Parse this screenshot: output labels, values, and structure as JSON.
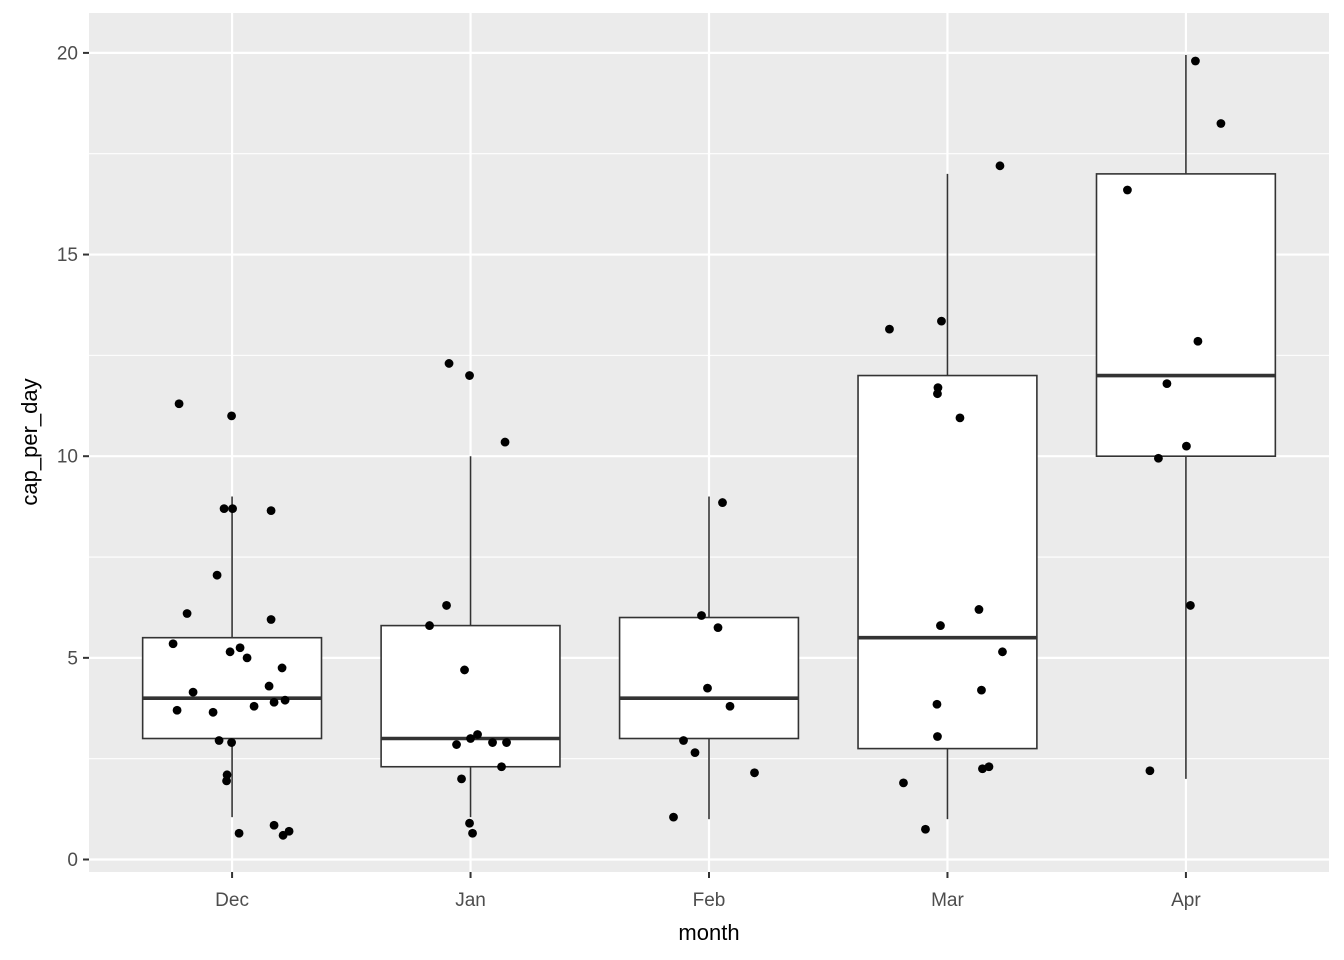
{
  "chart_data": {
    "type": "boxplot",
    "title": "",
    "xlabel": "month",
    "ylabel": "cap_per_day",
    "categories": [
      "Dec",
      "Jan",
      "Feb",
      "Mar",
      "Apr"
    ],
    "y_axis": {
      "ticks": [
        0,
        5,
        10,
        15,
        20
      ],
      "tick_labels": [
        "0",
        "5",
        "10",
        "15",
        "20"
      ],
      "minor_ticks": [
        2.5,
        7.5,
        12.5,
        17.5
      ],
      "range": [
        -0.31,
        21.0
      ]
    },
    "grid": "horizontal major+minor gridlines, vertical major gridline at each category center",
    "legend": "none",
    "boxes": [
      {
        "category": "Dec",
        "lower_whisker": 1.05,
        "q1": 3.0,
        "median": 4.0,
        "q3": 5.5,
        "upper_whisker": 9.0
      },
      {
        "category": "Jan",
        "lower_whisker": 1.05,
        "q1": 2.3,
        "median": 3.0,
        "q3": 5.8,
        "upper_whisker": 10.0
      },
      {
        "category": "Feb",
        "lower_whisker": 1.0,
        "q1": 3.0,
        "median": 4.0,
        "q3": 6.0,
        "upper_whisker": 9.0
      },
      {
        "category": "Mar",
        "lower_whisker": 1.0,
        "q1": 2.75,
        "median": 5.5,
        "q3": 12.0,
        "upper_whisker": 17.0
      },
      {
        "category": "Apr",
        "lower_whisker": 2.0,
        "q1": 10.0,
        "median": 12.0,
        "q3": 17.0,
        "upper_whisker": 19.95
      }
    ],
    "jitter_points_note": "each point = [cap_per_day value, horizontal jitter offset in px from category center]",
    "jitter_points": {
      "Dec": [
        [
          11.3,
          -53
        ],
        [
          11.0,
          -0.5
        ],
        [
          8.7,
          -8
        ],
        [
          8.7,
          0.5
        ],
        [
          8.65,
          39
        ],
        [
          7.05,
          -15
        ],
        [
          6.1,
          -45
        ],
        [
          5.95,
          39
        ],
        [
          5.35,
          -59
        ],
        [
          5.25,
          8
        ],
        [
          5.15,
          -2
        ],
        [
          5.0,
          15
        ],
        [
          4.75,
          50
        ],
        [
          4.3,
          37
        ],
        [
          4.15,
          -39
        ],
        [
          3.95,
          53
        ],
        [
          3.9,
          42
        ],
        [
          3.8,
          22
        ],
        [
          3.7,
          -55
        ],
        [
          3.65,
          -19
        ],
        [
          2.95,
          -13
        ],
        [
          2.9,
          -0.5
        ],
        [
          2.1,
          -5
        ],
        [
          1.95,
          -5.5
        ],
        [
          0.85,
          42
        ],
        [
          0.7,
          57
        ],
        [
          0.65,
          7
        ],
        [
          0.6,
          51
        ]
      ],
      "Jan": [
        [
          12.3,
          -21.5
        ],
        [
          12.0,
          -1
        ],
        [
          10.35,
          34.5
        ],
        [
          6.3,
          -24
        ],
        [
          5.8,
          -41
        ],
        [
          4.7,
          -6
        ],
        [
          3.1,
          7
        ],
        [
          3.0,
          0
        ],
        [
          2.85,
          -14
        ],
        [
          2.9,
          22
        ],
        [
          2.9,
          36
        ],
        [
          2.3,
          31
        ],
        [
          2.0,
          -9
        ],
        [
          0.9,
          -1
        ],
        [
          0.65,
          2
        ]
      ],
      "Feb": [
        [
          8.85,
          13.5
        ],
        [
          6.05,
          -7.5
        ],
        [
          5.75,
          9
        ],
        [
          4.25,
          -1.5
        ],
        [
          3.8,
          21
        ],
        [
          2.95,
          -25.5
        ],
        [
          2.65,
          -14
        ],
        [
          2.15,
          45.5
        ],
        [
          1.05,
          -35.5
        ]
      ],
      "Mar": [
        [
          17.2,
          52.5
        ],
        [
          13.35,
          -6
        ],
        [
          13.15,
          -58
        ],
        [
          11.7,
          -9.5
        ],
        [
          11.55,
          -10
        ],
        [
          10.95,
          12.5
        ],
        [
          6.2,
          31.5
        ],
        [
          5.8,
          -7
        ],
        [
          5.15,
          55
        ],
        [
          4.2,
          34
        ],
        [
          3.85,
          -10.5
        ],
        [
          3.05,
          -10
        ],
        [
          2.3,
          41.5
        ],
        [
          2.25,
          35
        ],
        [
          1.9,
          -44
        ],
        [
          0.75,
          -22
        ]
      ],
      "Apr": [
        [
          19.8,
          9.5
        ],
        [
          18.25,
          35
        ],
        [
          16.6,
          -58.5
        ],
        [
          12.85,
          12
        ],
        [
          11.8,
          -19
        ],
        [
          10.25,
          0.5
        ],
        [
          9.95,
          -27.5
        ],
        [
          6.3,
          4.5
        ],
        [
          2.2,
          -36
        ]
      ]
    },
    "colors": {
      "panel_background": "#EBEBEB",
      "grid": "#FFFFFF",
      "box_fill": "#FFFFFF",
      "box_border": "#333333",
      "point": "#000000",
      "tick_mark": "#333333",
      "tick_label": "#4D4D4D",
      "axis_title": "#000000"
    }
  }
}
